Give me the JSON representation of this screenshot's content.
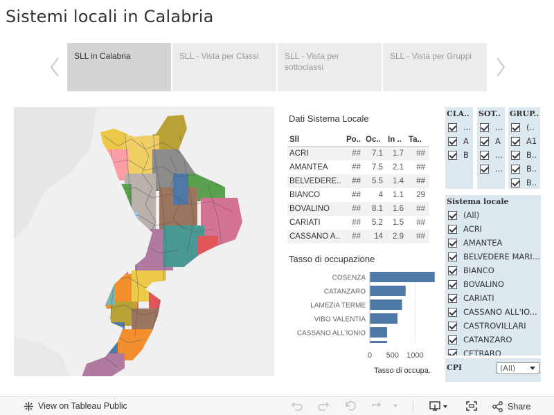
{
  "page": {
    "title": "Sistemi locali in Calabria"
  },
  "story": {
    "tabs": [
      {
        "label": "SLL in Calabria",
        "active": true
      },
      {
        "label": "SLL - Vista per Classi",
        "active": false
      },
      {
        "label": "SLL - Vista per sottoclassi",
        "active": false
      },
      {
        "label": "SLL - Vista per Gruppi",
        "active": false
      }
    ],
    "prev_icon": "chevron-left-icon",
    "next_icon": "chevron-right-icon"
  },
  "data_table": {
    "title": "Dati Sistema Locale",
    "headers": [
      "Sll",
      "Po..",
      "Oc..",
      "In ..",
      "Ta.."
    ],
    "rows": [
      [
        "ACRI",
        "##",
        "7.1",
        "1.7",
        "##"
      ],
      [
        "AMANTEA",
        "##",
        "7.5",
        "2.1",
        "##"
      ],
      [
        "BELVEDERE..",
        "##",
        "5.5",
        "1.4",
        "##"
      ],
      [
        "BIANCO",
        "##",
        "4",
        "1.1",
        "29"
      ],
      [
        "BOVALINO",
        "##",
        "8.1",
        "1.6",
        "##"
      ],
      [
        "CARIATI",
        "##",
        "5.2",
        "1.5",
        "##"
      ],
      [
        "CASSANO A..",
        "##",
        "14",
        "2.9",
        "##"
      ]
    ]
  },
  "chart_data": {
    "type": "bar",
    "title": "Tasso di occupazione",
    "orientation": "horizontal",
    "categories": [
      "COSENZA",
      "CATANZARO",
      "LAMEZIA TERME",
      "VIBO VALENTIA",
      "CASSANO ALL'IONIO"
    ],
    "values": [
      1430,
      790,
      710,
      610,
      380
    ],
    "xlabel": "Tasso di occupa.",
    "xticks": [
      "0",
      "500",
      "1000"
    ],
    "xlim": [
      0,
      1450
    ],
    "color": "#4e79a7"
  },
  "filters": {
    "classe": {
      "header": "CLA..",
      "items": [
        "...",
        "A",
        "B"
      ]
    },
    "sottoclasse": {
      "header": "SOT..",
      "items": [
        "...",
        "A",
        "...",
        "..."
      ]
    },
    "gruppi": {
      "header": "GRUP..",
      "items": [
        "(..",
        "A1",
        "B..",
        "B..",
        "B.."
      ]
    },
    "sistema_locale": {
      "header": "Sistema locale",
      "items": [
        "(All)",
        "ACRI",
        "AMANTEA",
        "BELVEDERE MARI...",
        "BIANCO",
        "BOVALINO",
        "CARIATI",
        "CASSANO ALL'IO...",
        "CASTROVILLARI",
        "CATANZARO",
        "CETRARO"
      ]
    },
    "cpi": {
      "label": "CPI",
      "value": "(All)"
    }
  },
  "footer": {
    "view_label": "View on Tableau Public",
    "share_label": "Share",
    "icons": [
      "tableau-logo-icon",
      "undo-icon",
      "redo-icon",
      "revert-icon",
      "refresh-icon",
      "pause-dropdown-icon",
      "download-icon",
      "fullscreen-icon",
      "share-icon"
    ]
  },
  "map": {
    "colors": [
      "#b07aa1",
      "#59a14f",
      "#edc948",
      "#f28e2b",
      "#4e79a7",
      "#8c8c8c",
      "#e15759",
      "#76b7b2",
      "#ff9da7",
      "#9c755f",
      "#bab0ac",
      "#499894",
      "#a0cbe8",
      "#b8a236",
      "#d37295",
      "#f1ce63"
    ]
  }
}
